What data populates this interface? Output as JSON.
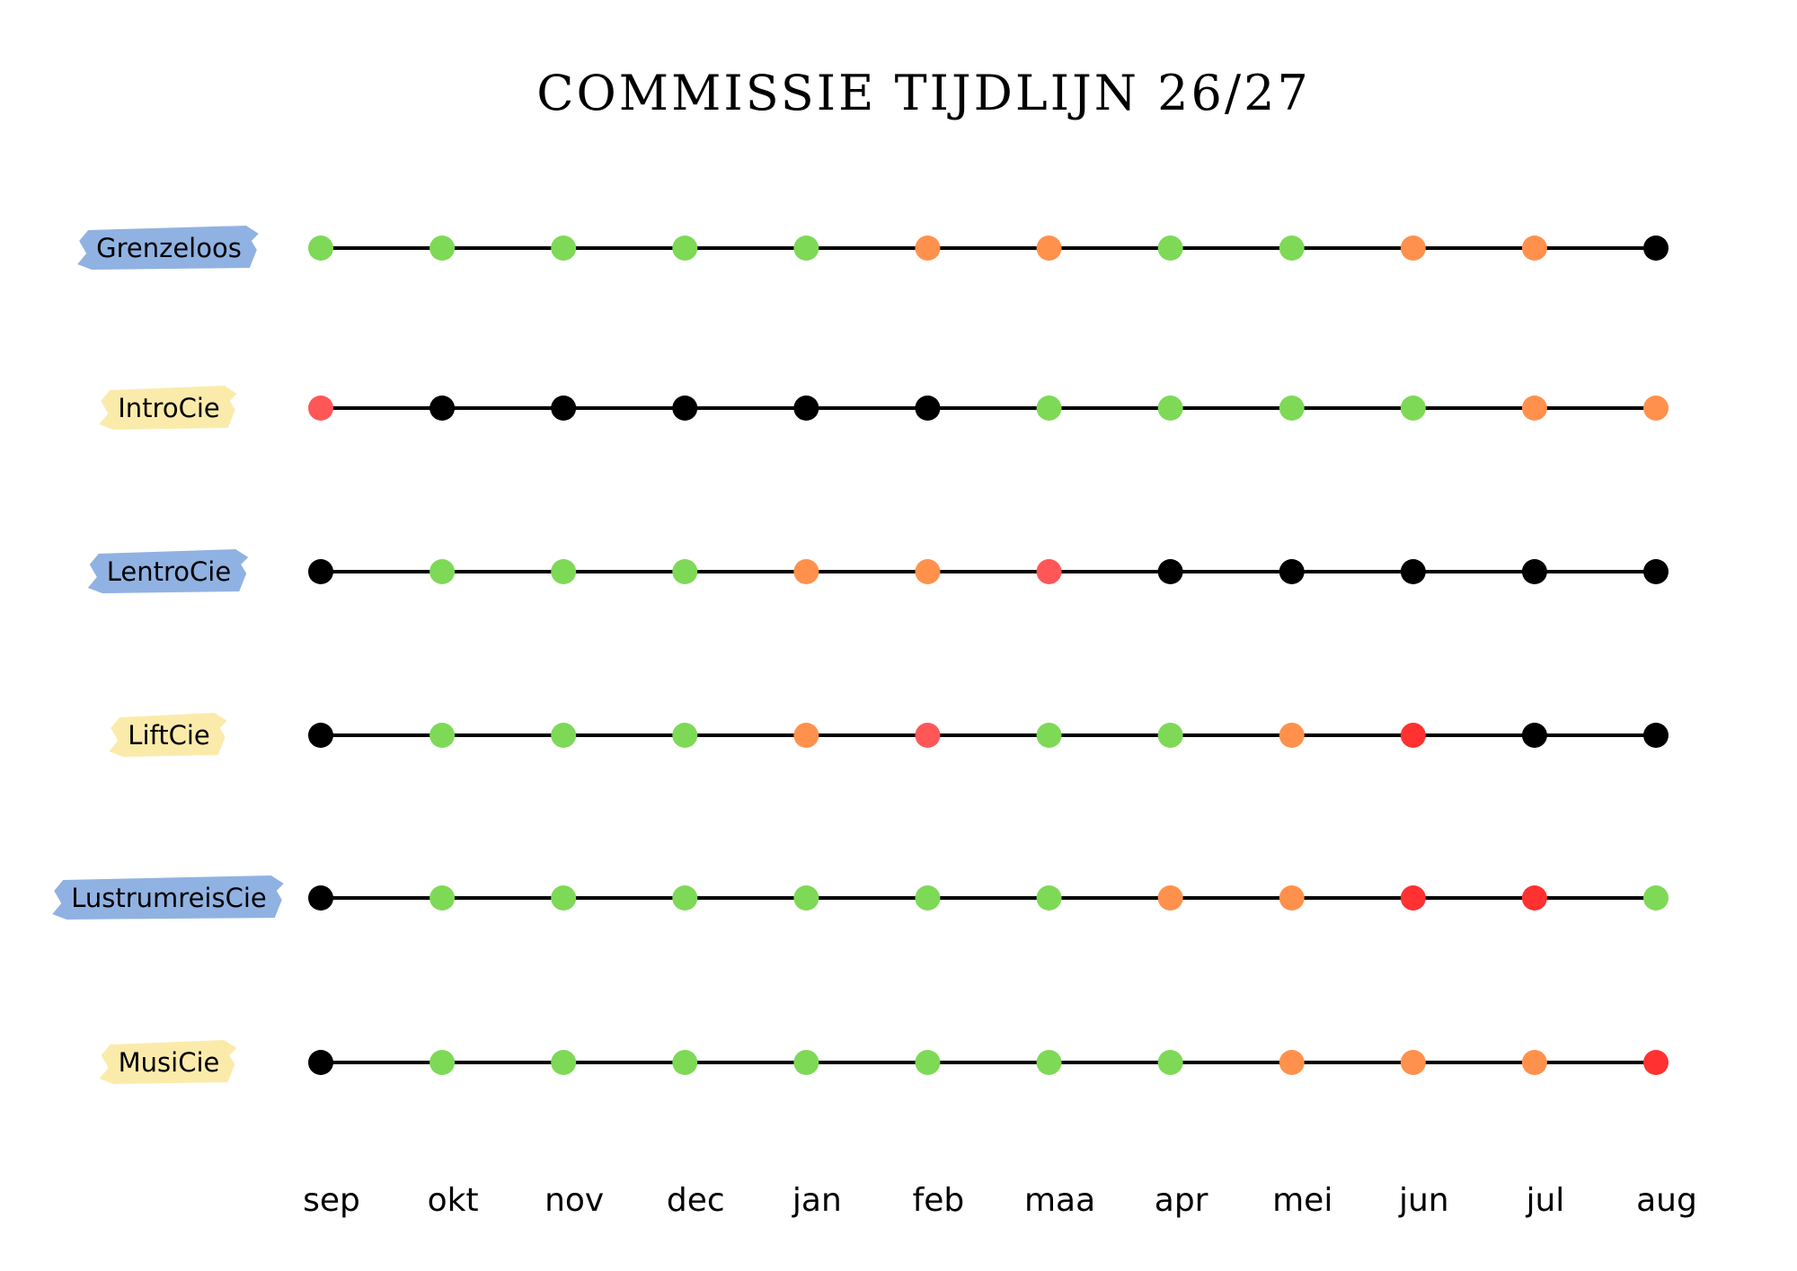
{
  "title": "COMMISSIE TIJDLIJN 26/27",
  "months": [
    "sep",
    "okt",
    "nov",
    "dec",
    "jan",
    "feb",
    "maa",
    "apr",
    "mei",
    "jun",
    "jul",
    "aug"
  ],
  "rows": [
    {
      "label": "Grenzeloos",
      "highlight": "#8aaee0",
      "statuses": [
        "#7ed957",
        "#7ed957",
        "#7ed957",
        "#7ed957",
        "#7ed957",
        "#ff914d",
        "#ff914d",
        "#7ed957",
        "#7ed957",
        "#ff914d",
        "#ff914d",
        "#000000"
      ]
    },
    {
      "label": "IntroCie",
      "highlight": "#fbeaa6",
      "statuses": [
        "#ff5757",
        "#000000",
        "#000000",
        "#000000",
        "#000000",
        "#000000",
        "#7ed957",
        "#7ed957",
        "#7ed957",
        "#7ed957",
        "#ff914d",
        "#ff914d"
      ]
    },
    {
      "label": "LentroCie",
      "highlight": "#8aaee0",
      "statuses": [
        "#000000",
        "#7ed957",
        "#7ed957",
        "#7ed957",
        "#ff914d",
        "#ff914d",
        "#ff5757",
        "#000000",
        "#000000",
        "#000000",
        "#000000",
        "#000000"
      ]
    },
    {
      "label": "LiftCie",
      "highlight": "#fbeaa6",
      "statuses": [
        "#000000",
        "#7ed957",
        "#7ed957",
        "#7ed957",
        "#ff914d",
        "#ff5757",
        "#7ed957",
        "#7ed957",
        "#ff914d",
        "#ff3131",
        "#000000",
        "#000000"
      ]
    },
    {
      "label": "LustrumreisCie",
      "highlight": "#8aaee0",
      "statuses": [
        "#000000",
        "#7ed957",
        "#7ed957",
        "#7ed957",
        "#7ed957",
        "#7ed957",
        "#7ed957",
        "#ff914d",
        "#ff914d",
        "#ff3131",
        "#ff3131",
        "#7ed957"
      ]
    },
    {
      "label": "MusiCie",
      "highlight": "#fbeaa6",
      "statuses": [
        "#000000",
        "#7ed957",
        "#7ed957",
        "#7ed957",
        "#7ed957",
        "#7ed957",
        "#7ed957",
        "#7ed957",
        "#ff914d",
        "#ff914d",
        "#ff914d",
        "#ff3131"
      ]
    }
  ]
}
